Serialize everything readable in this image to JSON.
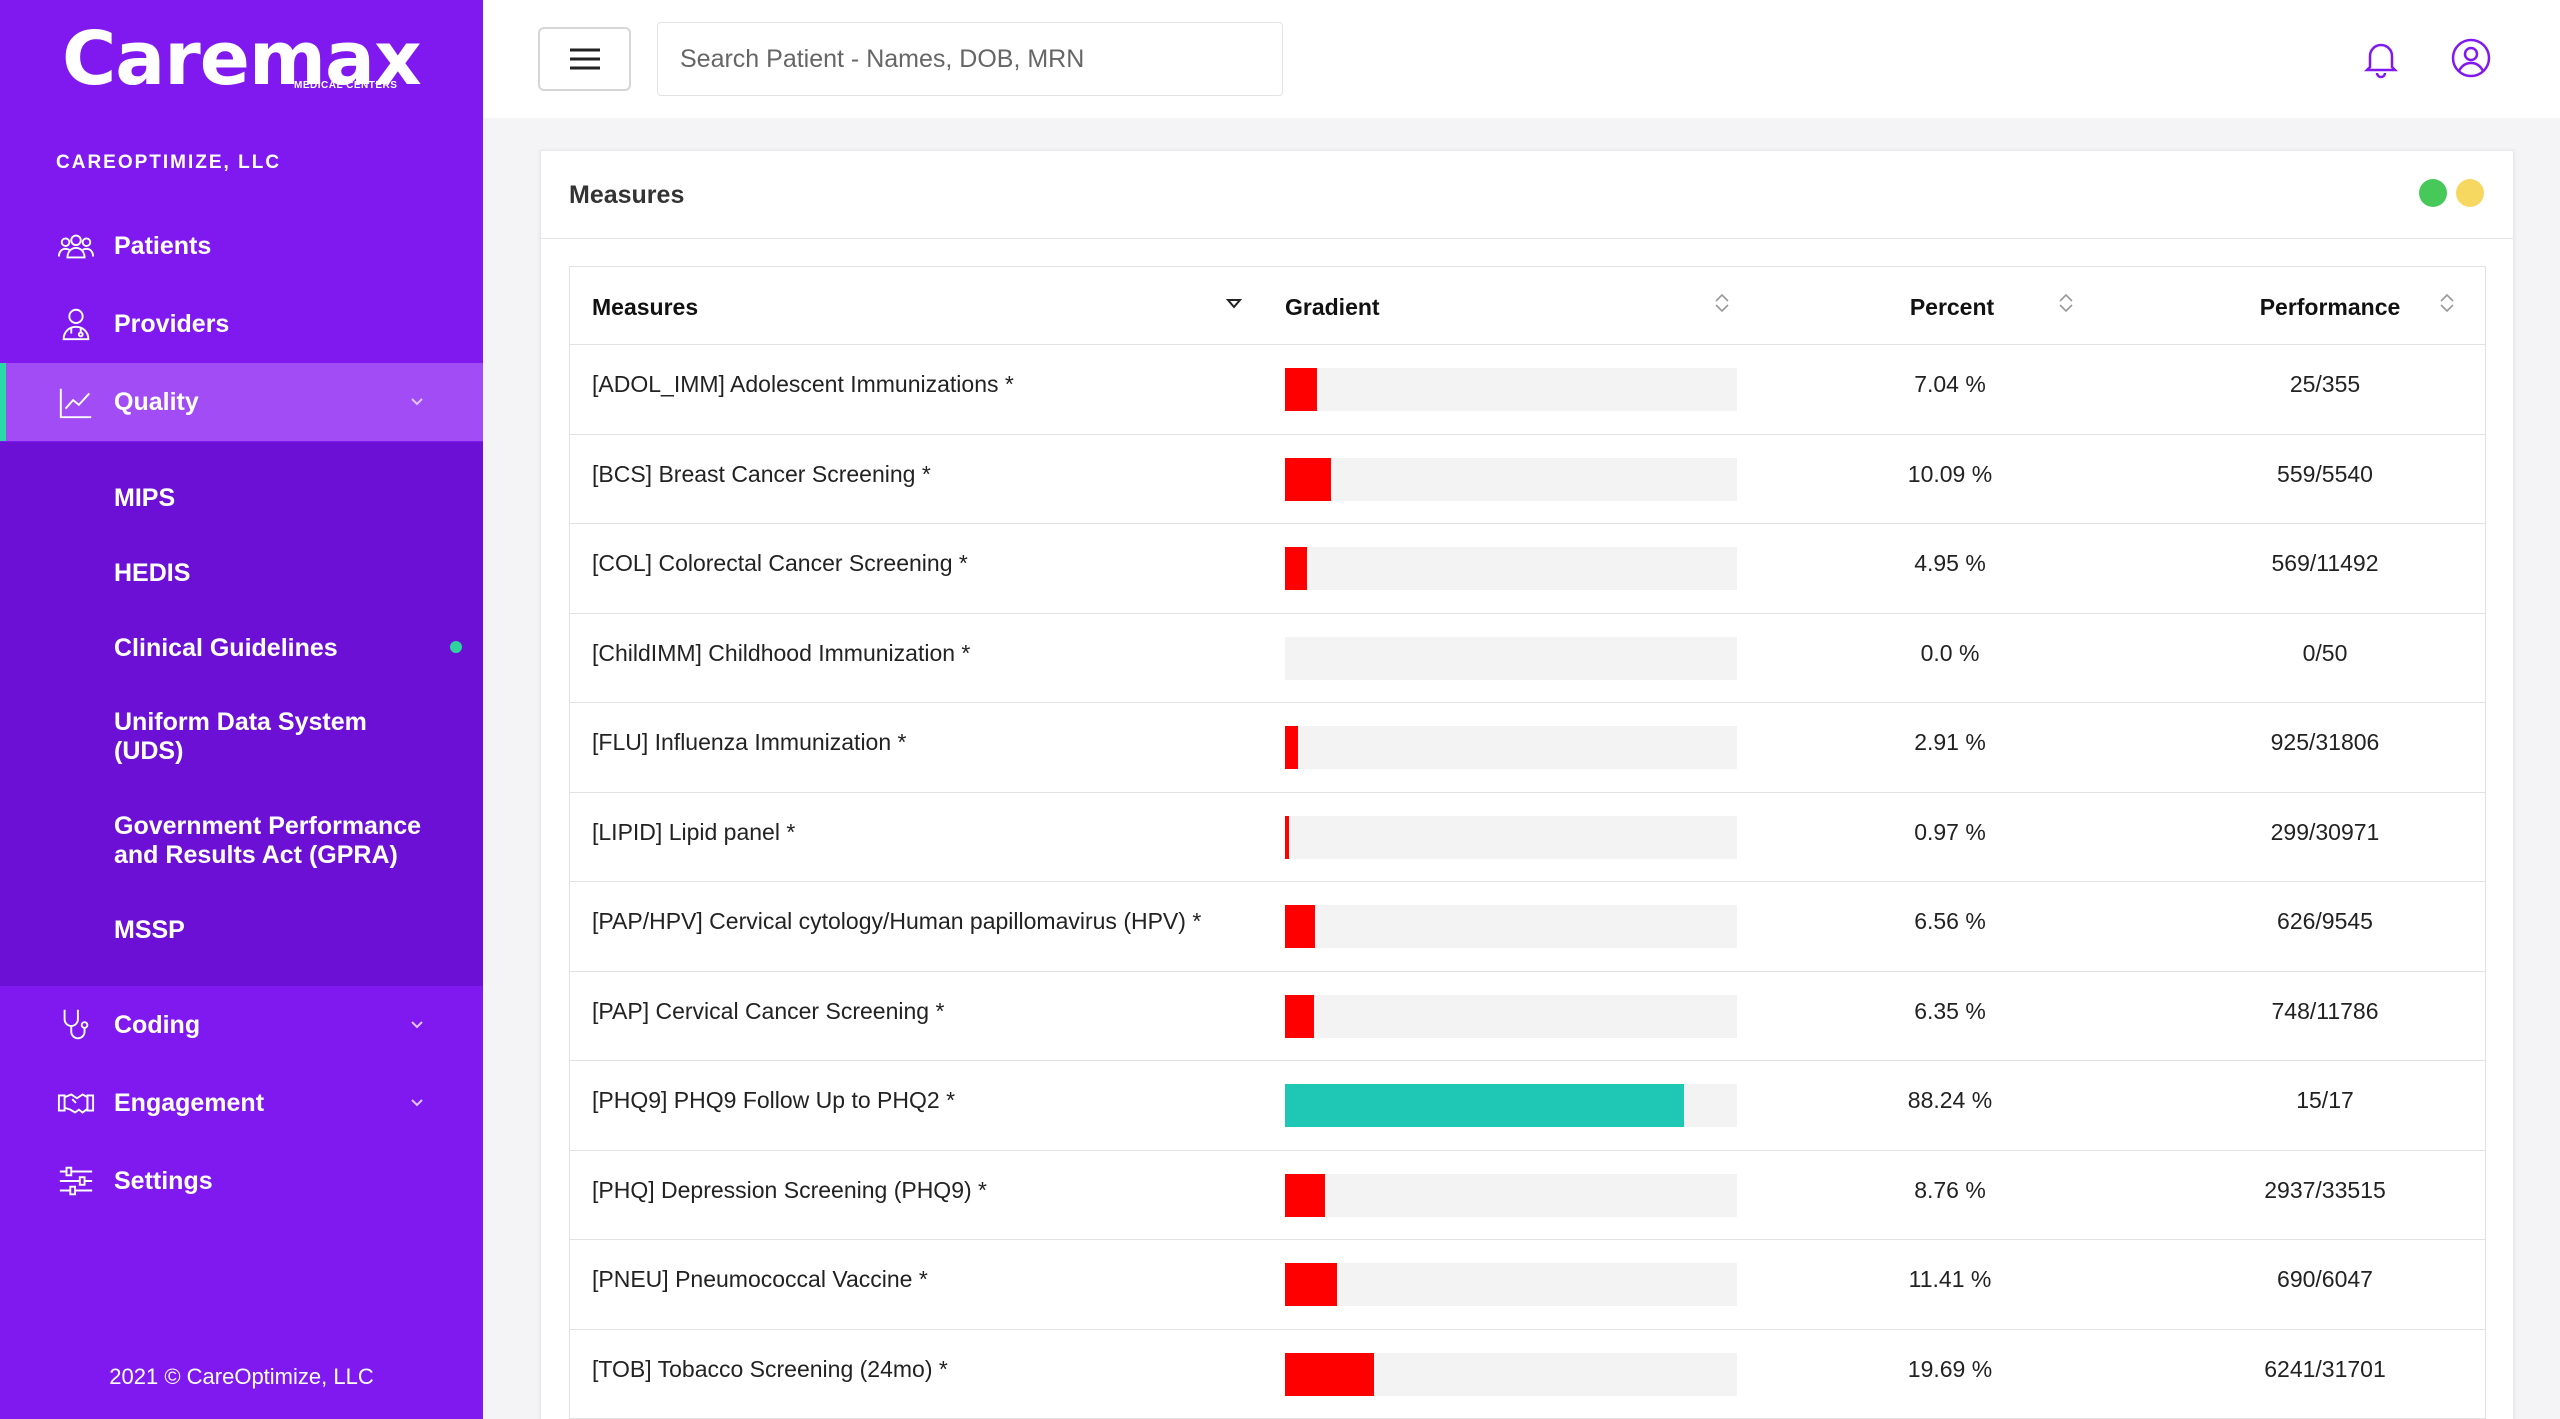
{
  "brand": {
    "name": "Caremax",
    "tagline": "MEDICAL CENTERS"
  },
  "sidebar": {
    "org": "CAREOPTIMIZE, LLC",
    "items": [
      {
        "label": "Patients",
        "icon": "users-icon"
      },
      {
        "label": "Providers",
        "icon": "provider-icon"
      },
      {
        "label": "Quality",
        "icon": "chart-line-icon",
        "active": true
      },
      {
        "label": "Coding",
        "icon": "stethoscope-icon"
      },
      {
        "label": "Engagement",
        "icon": "handshake-icon"
      },
      {
        "label": "Settings",
        "icon": "sliders-icon"
      }
    ],
    "quality_sub": [
      {
        "label": "MIPS"
      },
      {
        "label": "HEDIS"
      },
      {
        "label": "Clinical Guidelines",
        "active": true
      },
      {
        "label": "Uniform Data System (UDS)"
      },
      {
        "label": "Government Performance and Results Act (GPRA)"
      },
      {
        "label": "MSSP"
      }
    ],
    "footer": "2021 © CareOptimize, LLC"
  },
  "header": {
    "search_placeholder": "Search Patient - Names, DOB, MRN"
  },
  "card": {
    "title": "Measures",
    "status_colors": [
      "#47c95a",
      "#f6d860"
    ],
    "columns": [
      "Measures",
      "Gradient",
      "Percent",
      "Performance"
    ],
    "rows": [
      {
        "measure": "[ADOL_IMM] Adolescent Immunizations *",
        "percent_value": 7.04,
        "percent": "7.04 %",
        "performance": "25/355",
        "color": "#ff0000"
      },
      {
        "measure": "[BCS] Breast Cancer Screening *",
        "percent_value": 10.09,
        "percent": "10.09 %",
        "performance": "559/5540",
        "color": "#ff0000"
      },
      {
        "measure": "[COL] Colorectal Cancer Screening *",
        "percent_value": 4.95,
        "percent": "4.95 %",
        "performance": "569/11492",
        "color": "#ff0000"
      },
      {
        "measure": "[ChildIMM] Childhood Immunization *",
        "percent_value": 0.0,
        "percent": "0.0 %",
        "performance": "0/50",
        "color": "#ff0000"
      },
      {
        "measure": "[FLU] Influenza Immunization *",
        "percent_value": 2.91,
        "percent": "2.91 %",
        "performance": "925/31806",
        "color": "#ff0000"
      },
      {
        "measure": "[LIPID] Lipid panel *",
        "percent_value": 0.97,
        "percent": "0.97 %",
        "performance": "299/30971",
        "color": "#ff0000"
      },
      {
        "measure": "[PAP/HPV] Cervical cytology/Human papillomavirus (HPV) *",
        "percent_value": 6.56,
        "percent": "6.56 %",
        "performance": "626/9545",
        "color": "#ff0000"
      },
      {
        "measure": "[PAP] Cervical Cancer Screening *",
        "percent_value": 6.35,
        "percent": "6.35 %",
        "performance": "748/11786",
        "color": "#ff0000"
      },
      {
        "measure": "[PHQ9] PHQ9 Follow Up to PHQ2 *",
        "percent_value": 88.24,
        "percent": "88.24 %",
        "performance": "15/17",
        "color": "#1ec8b4"
      },
      {
        "measure": "[PHQ] Depression Screening (PHQ9) *",
        "percent_value": 8.76,
        "percent": "8.76 %",
        "performance": "2937/33515",
        "color": "#ff0000"
      },
      {
        "measure": "[PNEU] Pneumococcal Vaccine *",
        "percent_value": 11.41,
        "percent": "11.41 %",
        "performance": "690/6047",
        "color": "#ff0000"
      },
      {
        "measure": "[TOB] Tobacco Screening (24mo) *",
        "percent_value": 19.69,
        "percent": "19.69 %",
        "performance": "6241/31701",
        "color": "#ff0000"
      }
    ]
  }
}
